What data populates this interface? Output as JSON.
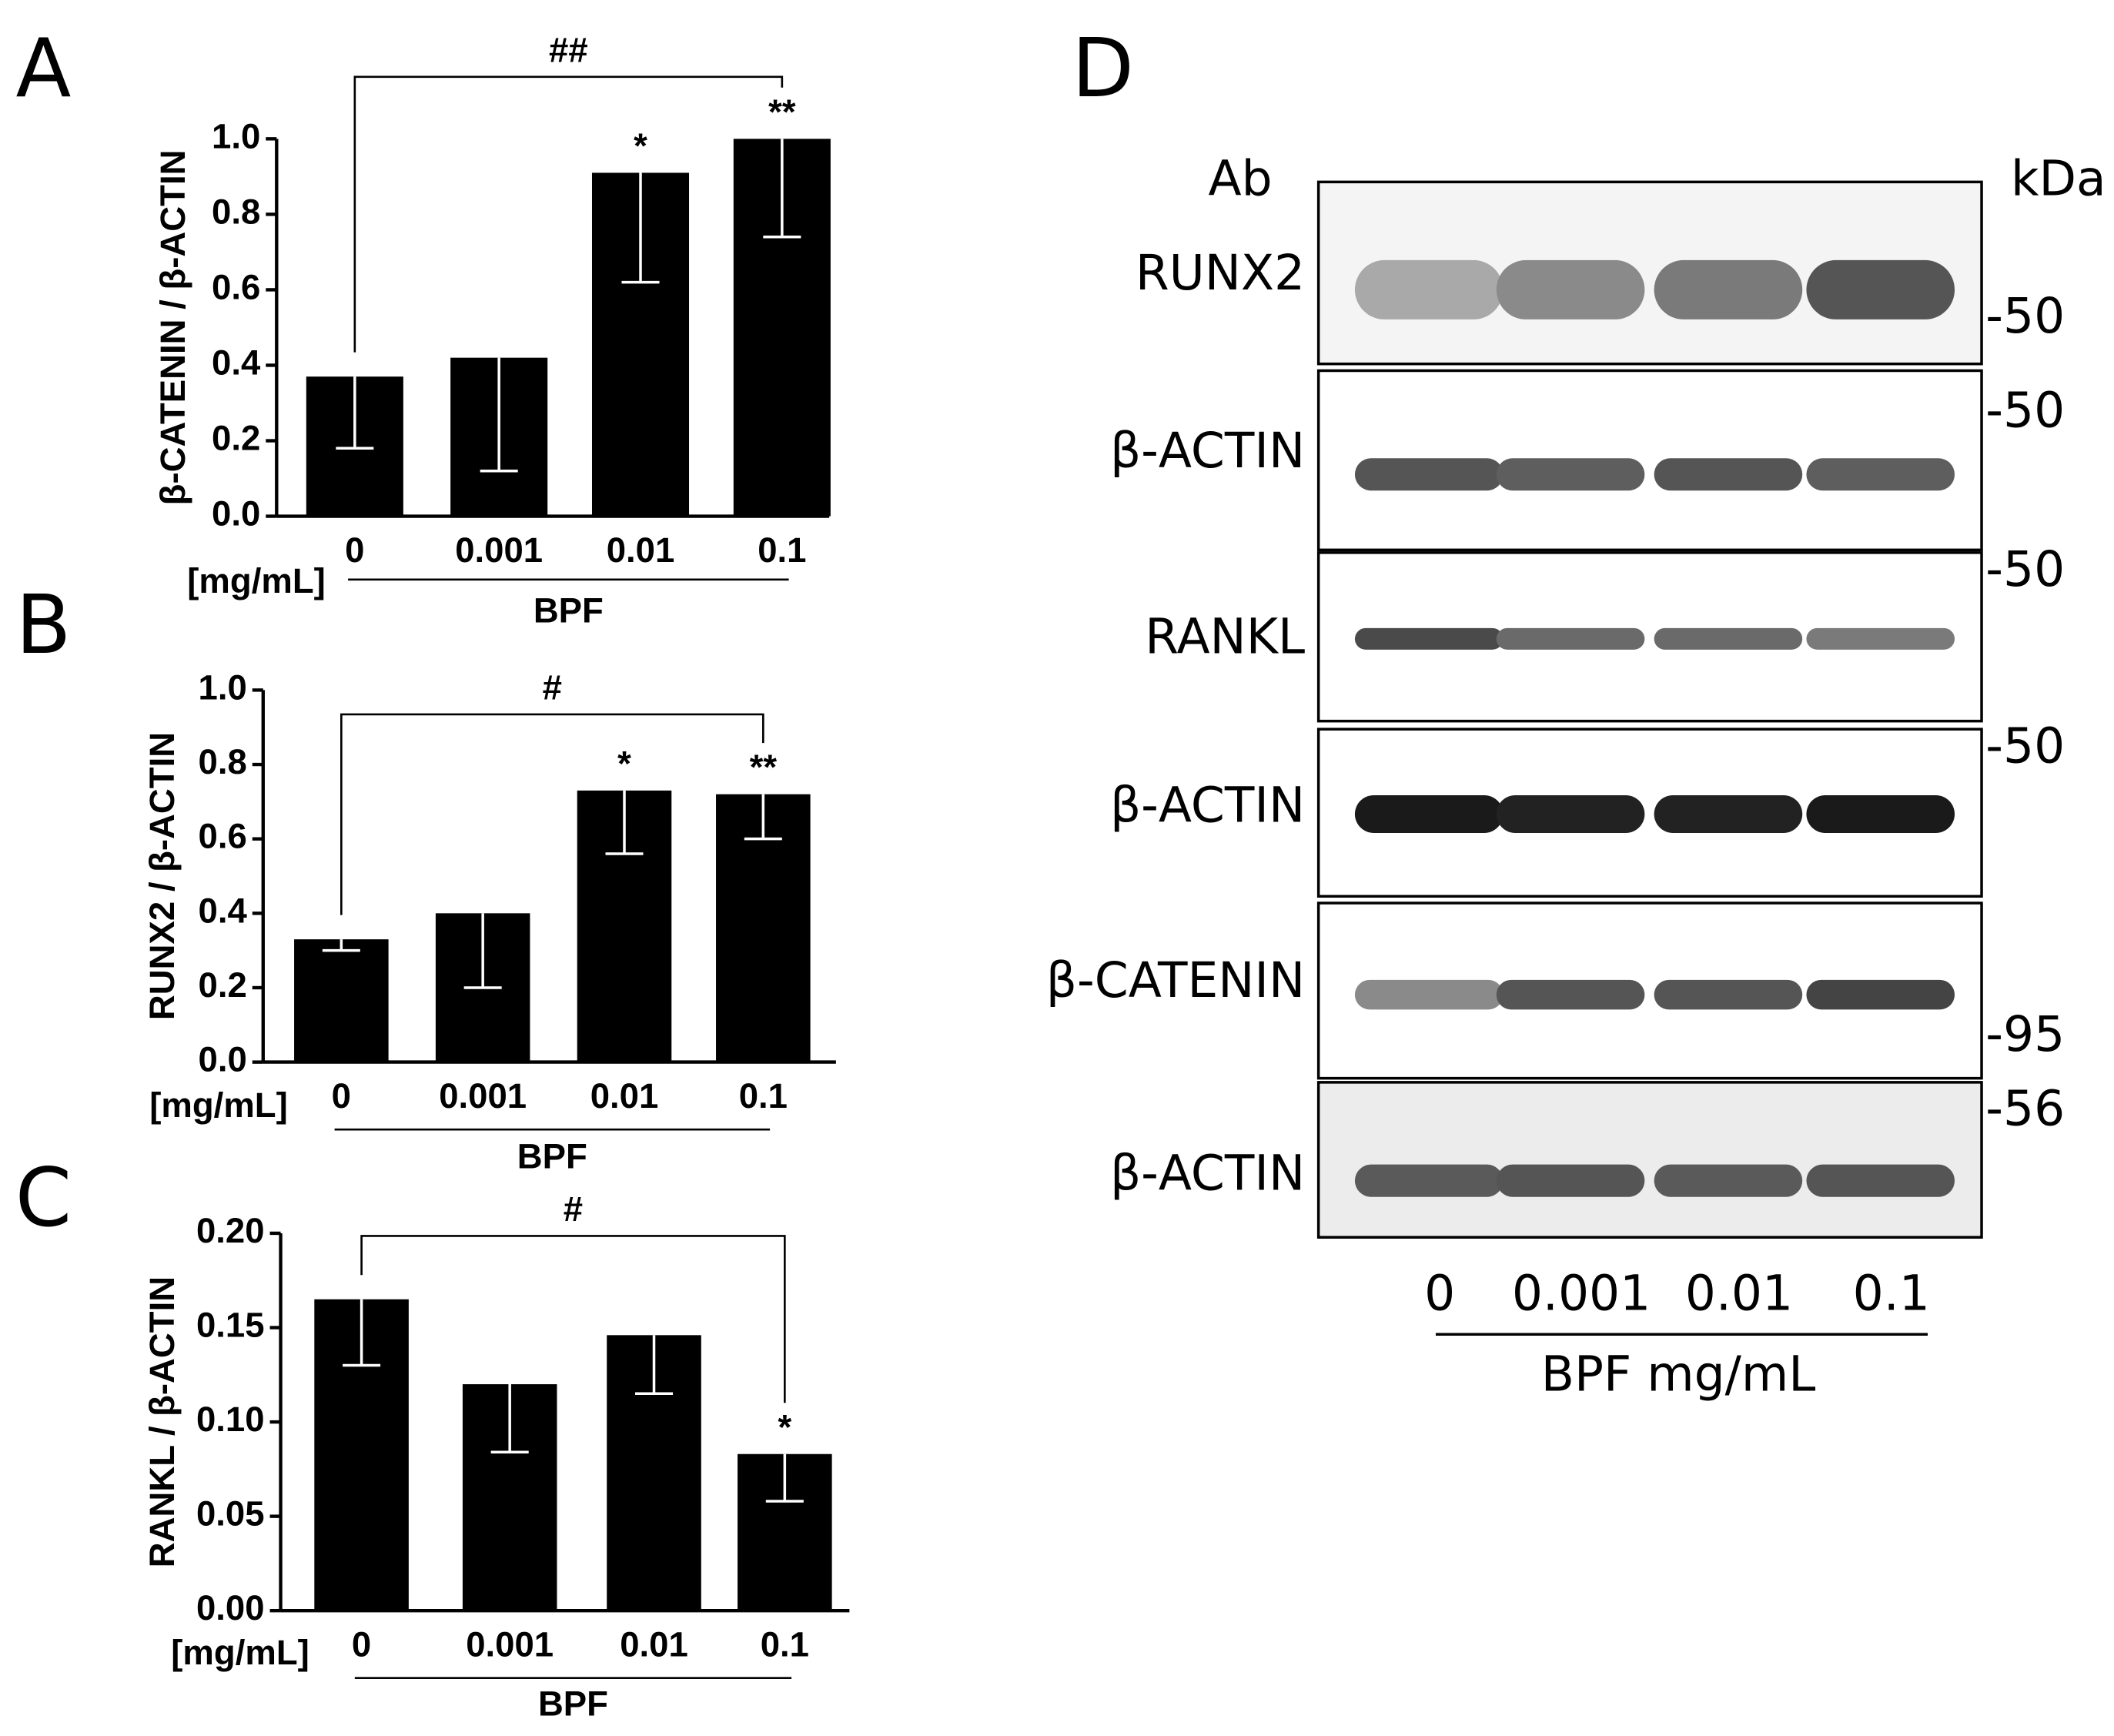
{
  "chart_data": [
    {
      "type": "bar",
      "panel": "A",
      "ylabel": "β-CATENIN / β-ACTIN",
      "unit_label": "[mg/mL]",
      "xlabel": "BPF",
      "categories": [
        "0",
        "0.001",
        "0.01",
        "0.1"
      ],
      "values": [
        0.37,
        0.42,
        0.91,
        1.0
      ],
      "errors": [
        0.19,
        0.3,
        0.29,
        0.26
      ],
      "significance": [
        null,
        null,
        "*",
        "**"
      ],
      "bracket_label": "##",
      "color": "#000000",
      "error_color": "#ffffff",
      "ylim": [
        0,
        1.0
      ],
      "yticks": [
        {
          "value": 0,
          "label": "0.0"
        },
        0.2,
        0.4,
        0.6,
        0.8,
        {
          "value": 1,
          "label": "1.0"
        }
      ]
    },
    {
      "type": "bar",
      "panel": "B",
      "ylabel": "RUNX2 / β-ACTIN",
      "unit_label": "[mg/mL]",
      "xlabel": "BPF",
      "categories": [
        "0",
        "0.001",
        "0.01",
        "0.1"
      ],
      "values": [
        0.33,
        0.4,
        0.73,
        0.72
      ],
      "errors": [
        0.03,
        0.2,
        0.17,
        0.12
      ],
      "significance": [
        null,
        null,
        "*",
        "**"
      ],
      "bracket_label": "#",
      "color": "#000000",
      "error_color": "#ffffff",
      "ylim": [
        0,
        1.0
      ],
      "yticks": [
        {
          "value": 0,
          "label": "0.0"
        },
        0.2,
        0.4,
        0.6,
        0.8,
        {
          "value": 1,
          "label": "1.0"
        }
      ]
    },
    {
      "type": "bar",
      "panel": "C",
      "ylabel": "RANKL / β-ACTIN",
      "unit_label": "[mg/mL]",
      "xlabel": "BPF",
      "categories": [
        "0",
        "0.001",
        "0.01",
        "0.1"
      ],
      "values": [
        0.165,
        0.12,
        0.146,
        0.083
      ],
      "errors": [
        0.035,
        0.036,
        0.031,
        0.025
      ],
      "significance": [
        null,
        null,
        null,
        "*"
      ],
      "bracket_label": "#",
      "color": "#000000",
      "error_color": "#ffffff",
      "ylim": [
        0,
        0.2
      ],
      "yticks": [
        {
          "value": 0,
          "label": "0.00"
        },
        0.05,
        {
          "value": 0.1,
          "label": "0.10"
        },
        0.15,
        {
          "value": 0.2,
          "label": "0.20"
        }
      ]
    }
  ],
  "blot": {
    "panel": "D",
    "antibody_header": "Ab",
    "kda_header": "kDa",
    "rows": [
      {
        "antibody": "RUNX2",
        "kda": "-50"
      },
      {
        "antibody": "β-ACTIN",
        "kda": "-50"
      },
      {
        "antibody": "RANKL",
        "kda": "-50"
      },
      {
        "antibody": "β-ACTIN",
        "kda": "-50"
      },
      {
        "antibody": "β-CATENIN",
        "kda": "-95"
      },
      {
        "antibody": "β-ACTIN",
        "kda": "-56"
      }
    ],
    "lanes": [
      "0",
      "0.001",
      "0.01",
      "0.1"
    ],
    "xlabel": "BPF mg/mL"
  }
}
